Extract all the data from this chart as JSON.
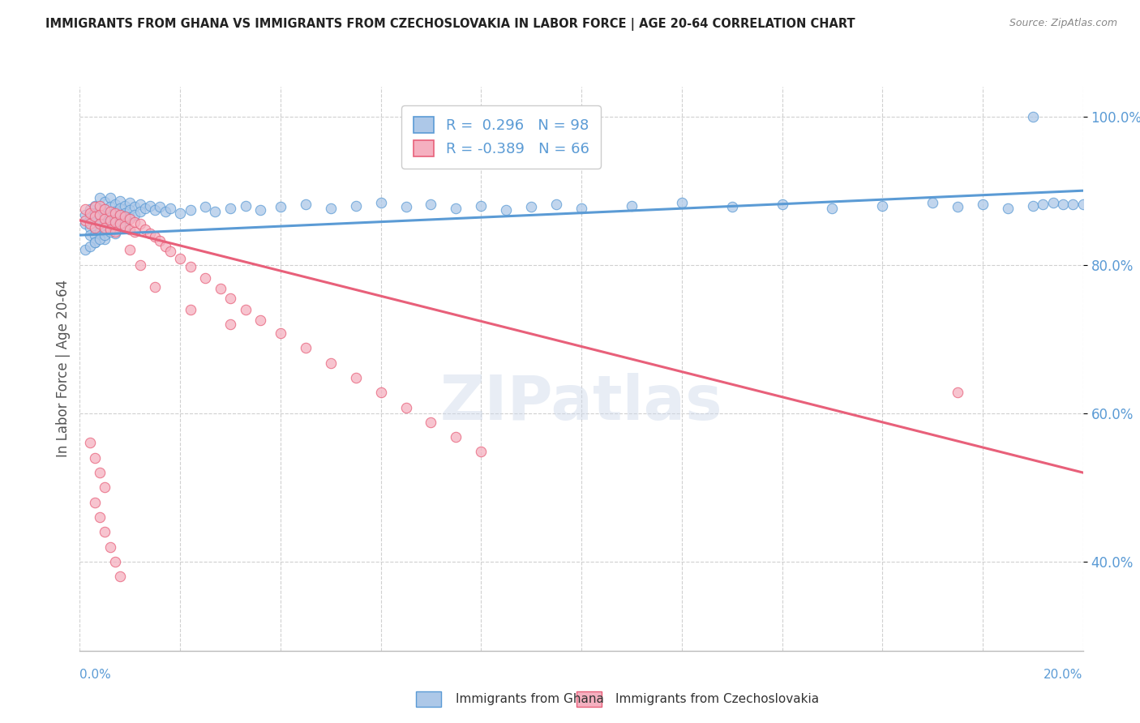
{
  "title": "IMMIGRANTS FROM GHANA VS IMMIGRANTS FROM CZECHOSLOVAKIA IN LABOR FORCE | AGE 20-64 CORRELATION CHART",
  "source": "Source: ZipAtlas.com",
  "ylabel": "In Labor Force | Age 20-64",
  "legend_label1": "Immigrants from Ghana",
  "legend_label2": "Immigrants from Czechoslovakia",
  "R1": 0.296,
  "N1": 98,
  "R2": -0.389,
  "N2": 66,
  "color1": "#adc8e8",
  "color2": "#f5b0c0",
  "trendline1_color": "#5b9bd5",
  "trendline2_color": "#e8607a",
  "watermark": "ZIPatlas",
  "xlim": [
    0.0,
    0.2
  ],
  "ylim": [
    0.28,
    1.04
  ],
  "yticks": [
    0.4,
    0.6,
    0.8,
    1.0
  ],
  "ytick_labels": [
    "40.0%",
    "60.0%",
    "80.0%",
    "100.0%"
  ],
  "background_color": "#ffffff",
  "grid_color": "#d0d0d0",
  "title_color": "#222222",
  "ghana_x": [
    0.001,
    0.001,
    0.002,
    0.002,
    0.002,
    0.002,
    0.003,
    0.003,
    0.003,
    0.003,
    0.003,
    0.003,
    0.004,
    0.004,
    0.004,
    0.004,
    0.004,
    0.005,
    0.005,
    0.005,
    0.005,
    0.005,
    0.005,
    0.006,
    0.006,
    0.006,
    0.006,
    0.006,
    0.007,
    0.007,
    0.007,
    0.007,
    0.007,
    0.008,
    0.008,
    0.008,
    0.008,
    0.009,
    0.009,
    0.009,
    0.009,
    0.01,
    0.01,
    0.01,
    0.011,
    0.011,
    0.012,
    0.012,
    0.013,
    0.014,
    0.015,
    0.016,
    0.017,
    0.018,
    0.02,
    0.022,
    0.025,
    0.027,
    0.03,
    0.033,
    0.036,
    0.04,
    0.045,
    0.05,
    0.055,
    0.06,
    0.065,
    0.07,
    0.075,
    0.08,
    0.085,
    0.09,
    0.095,
    0.1,
    0.11,
    0.12,
    0.13,
    0.14,
    0.15,
    0.16,
    0.17,
    0.175,
    0.18,
    0.185,
    0.19,
    0.192,
    0.194,
    0.196,
    0.198,
    0.2,
    0.001,
    0.002,
    0.003,
    0.004,
    0.005,
    0.006,
    0.007,
    0.19
  ],
  "ghana_y": [
    0.868,
    0.855,
    0.875,
    0.865,
    0.85,
    0.84,
    0.88,
    0.87,
    0.86,
    0.85,
    0.84,
    0.83,
    0.89,
    0.875,
    0.865,
    0.855,
    0.845,
    0.885,
    0.875,
    0.865,
    0.855,
    0.845,
    0.835,
    0.89,
    0.878,
    0.868,
    0.858,
    0.848,
    0.882,
    0.872,
    0.862,
    0.852,
    0.842,
    0.886,
    0.876,
    0.866,
    0.856,
    0.88,
    0.87,
    0.86,
    0.85,
    0.884,
    0.874,
    0.864,
    0.878,
    0.868,
    0.882,
    0.872,
    0.876,
    0.88,
    0.874,
    0.878,
    0.872,
    0.876,
    0.87,
    0.874,
    0.878,
    0.872,
    0.876,
    0.88,
    0.874,
    0.878,
    0.882,
    0.876,
    0.88,
    0.884,
    0.878,
    0.882,
    0.876,
    0.88,
    0.874,
    0.878,
    0.882,
    0.876,
    0.88,
    0.884,
    0.878,
    0.882,
    0.876,
    0.88,
    0.884,
    0.878,
    0.882,
    0.876,
    0.88,
    0.882,
    0.884,
    0.882,
    0.882,
    0.882,
    0.82,
    0.825,
    0.83,
    0.835,
    0.84,
    0.845,
    0.85,
    1.0
  ],
  "czech_x": [
    0.001,
    0.001,
    0.002,
    0.002,
    0.003,
    0.003,
    0.003,
    0.004,
    0.004,
    0.004,
    0.005,
    0.005,
    0.005,
    0.006,
    0.006,
    0.006,
    0.007,
    0.007,
    0.007,
    0.008,
    0.008,
    0.009,
    0.009,
    0.01,
    0.01,
    0.011,
    0.011,
    0.012,
    0.013,
    0.014,
    0.015,
    0.016,
    0.017,
    0.018,
    0.02,
    0.022,
    0.025,
    0.028,
    0.03,
    0.033,
    0.036,
    0.04,
    0.045,
    0.05,
    0.055,
    0.06,
    0.065,
    0.07,
    0.075,
    0.08,
    0.002,
    0.003,
    0.004,
    0.005,
    0.003,
    0.004,
    0.005,
    0.006,
    0.007,
    0.008,
    0.01,
    0.012,
    0.015,
    0.022,
    0.03,
    0.175
  ],
  "czech_y": [
    0.875,
    0.86,
    0.87,
    0.855,
    0.878,
    0.865,
    0.85,
    0.88,
    0.868,
    0.855,
    0.875,
    0.862,
    0.85,
    0.872,
    0.86,
    0.848,
    0.87,
    0.858,
    0.845,
    0.868,
    0.855,
    0.865,
    0.852,
    0.862,
    0.848,
    0.858,
    0.845,
    0.855,
    0.848,
    0.842,
    0.838,
    0.832,
    0.825,
    0.818,
    0.808,
    0.798,
    0.782,
    0.768,
    0.755,
    0.74,
    0.725,
    0.708,
    0.688,
    0.668,
    0.648,
    0.628,
    0.608,
    0.588,
    0.568,
    0.548,
    0.56,
    0.54,
    0.52,
    0.5,
    0.48,
    0.46,
    0.44,
    0.42,
    0.4,
    0.38,
    0.82,
    0.8,
    0.77,
    0.74,
    0.72,
    0.628
  ],
  "trendline1_x": [
    0.0,
    0.2
  ],
  "trendline1_y": [
    0.84,
    0.9
  ],
  "trendline2_x": [
    0.0,
    0.2
  ],
  "trendline2_y": [
    0.86,
    0.52
  ]
}
